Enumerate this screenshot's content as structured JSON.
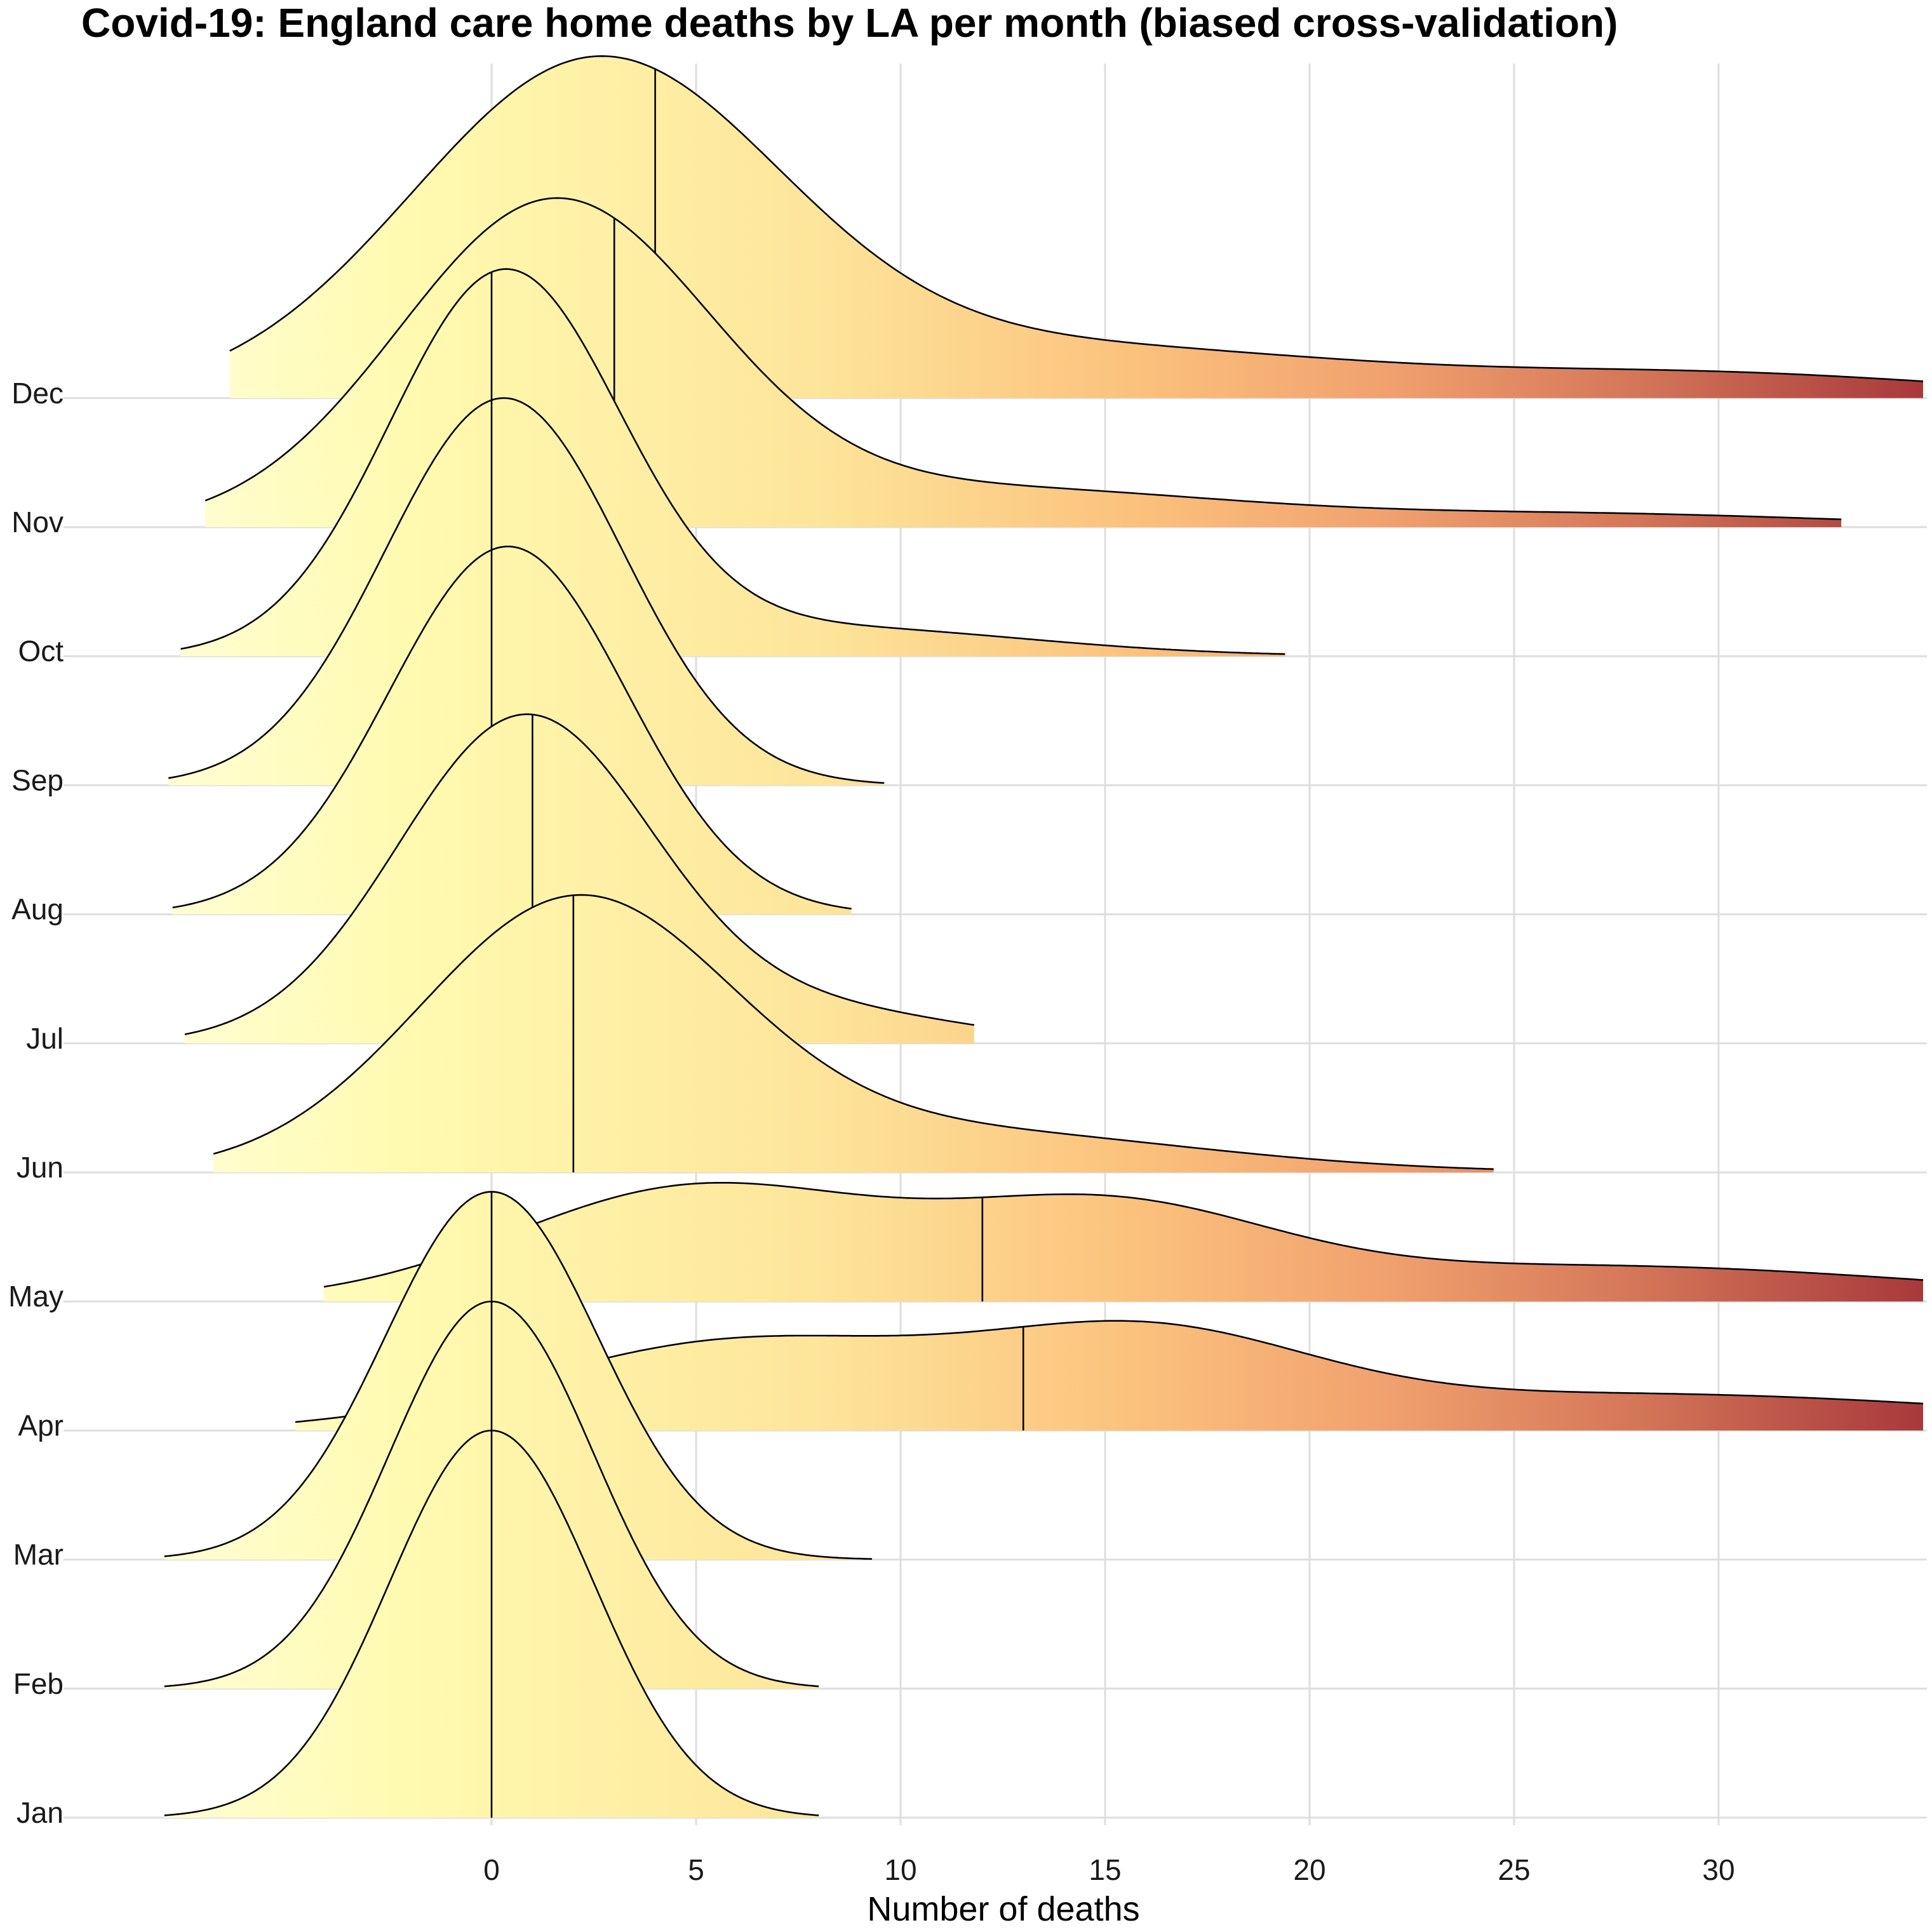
{
  "chart_data": {
    "type": "ridgeline-density",
    "title": "Covid-19: England care home deaths by LA per month (biased cross-validation)",
    "xlabel": "Number of deaths",
    "ylabel": "",
    "xlim": [
      -10,
      35
    ],
    "x_ticks": [
      0,
      5,
      10,
      15,
      20,
      25,
      30
    ],
    "x_tick_labels": [
      "0",
      "5",
      "10",
      "15",
      "20",
      "25",
      "30"
    ],
    "fill_gradient": {
      "variable": "Number of deaths",
      "colors": [
        "#ffffe0",
        "#fffab0",
        "#fde59a",
        "#fbc07c",
        "#f0a06e",
        "#d47658",
        "#a8393c"
      ],
      "stops": [
        -10,
        -2,
        8,
        16,
        22,
        28,
        35
      ]
    },
    "grid": true,
    "legend": "none",
    "series": [
      {
        "name": "Jan",
        "median": 0,
        "range": [
          -8,
          8
        ],
        "components": [
          {
            "w": 1,
            "mu": 0,
            "sd": 2.5
          }
        ],
        "peak_rows": 3.0
      },
      {
        "name": "Feb",
        "median": 0,
        "range": [
          -8,
          8
        ],
        "components": [
          {
            "w": 1,
            "mu": 0,
            "sd": 2.5
          }
        ],
        "peak_rows": 3.0
      },
      {
        "name": "Mar",
        "median": 0,
        "range": [
          -8,
          9.3
        ],
        "components": [
          {
            "w": 1,
            "mu": 0,
            "sd": 2.6
          }
        ],
        "peak_rows": 2.85
      },
      {
        "name": "Apr",
        "median": 13,
        "range": [
          -4.8,
          35
        ],
        "components": [
          {
            "w": 0.4,
            "mu": 6,
            "sd": 5
          },
          {
            "w": 0.3,
            "mu": 16,
            "sd": 4
          },
          {
            "w": 0.3,
            "mu": 28,
            "sd": 9
          }
        ],
        "peak_rows": 0.85
      },
      {
        "name": "May",
        "median": 12,
        "range": [
          -4.1,
          35
        ],
        "components": [
          {
            "w": 0.45,
            "mu": 5,
            "sd": 4.5
          },
          {
            "w": 0.3,
            "mu": 15,
            "sd": 4
          },
          {
            "w": 0.25,
            "mu": 27,
            "sd": 8
          }
        ],
        "peak_rows": 0.92
      },
      {
        "name": "Jun",
        "median": 2,
        "range": [
          -6.8,
          24.5
        ],
        "components": [
          {
            "w": 0.8,
            "mu": 2,
            "sd": 3.8
          },
          {
            "w": 0.2,
            "mu": 11,
            "sd": 6
          }
        ],
        "peak_rows": 2.15
      },
      {
        "name": "Jul",
        "median": 1,
        "range": [
          -7.5,
          11.8
        ],
        "components": [
          {
            "w": 0.9,
            "mu": 0.8,
            "sd": 3.1
          },
          {
            "w": 0.1,
            "mu": 8,
            "sd": 3.5
          }
        ],
        "peak_rows": 2.55
      },
      {
        "name": "Aug",
        "median": 0,
        "range": [
          -7.8,
          8.8
        ],
        "components": [
          {
            "w": 1,
            "mu": 0.4,
            "sd": 2.9
          }
        ],
        "peak_rows": 2.85
      },
      {
        "name": "Sep",
        "median": 0,
        "range": [
          -7.9,
          9.6
        ],
        "components": [
          {
            "w": 1,
            "mu": 0.3,
            "sd": 2.9
          }
        ],
        "peak_rows": 3.0
      },
      {
        "name": "Oct",
        "median": 0,
        "range": [
          -7.6,
          19.4
        ],
        "components": [
          {
            "w": 0.88,
            "mu": 0.3,
            "sd": 2.8
          },
          {
            "w": 0.12,
            "mu": 8,
            "sd": 5
          }
        ],
        "peak_rows": 3.0
      },
      {
        "name": "Nov",
        "median": 3,
        "range": [
          -7,
          33
        ],
        "components": [
          {
            "w": 0.8,
            "mu": 1.5,
            "sd": 3.8
          },
          {
            "w": 0.15,
            "mu": 12,
            "sd": 6
          },
          {
            "w": 0.05,
            "mu": 27,
            "sd": 6
          }
        ],
        "peak_rows": 2.55
      },
      {
        "name": "Dec",
        "median": 4,
        "range": [
          -6.4,
          35
        ],
        "components": [
          {
            "w": 0.75,
            "mu": 2.5,
            "sd": 4.5
          },
          {
            "w": 0.18,
            "mu": 14,
            "sd": 7
          },
          {
            "w": 0.07,
            "mu": 30,
            "sd": 6
          }
        ],
        "peak_rows": 2.65
      }
    ]
  }
}
